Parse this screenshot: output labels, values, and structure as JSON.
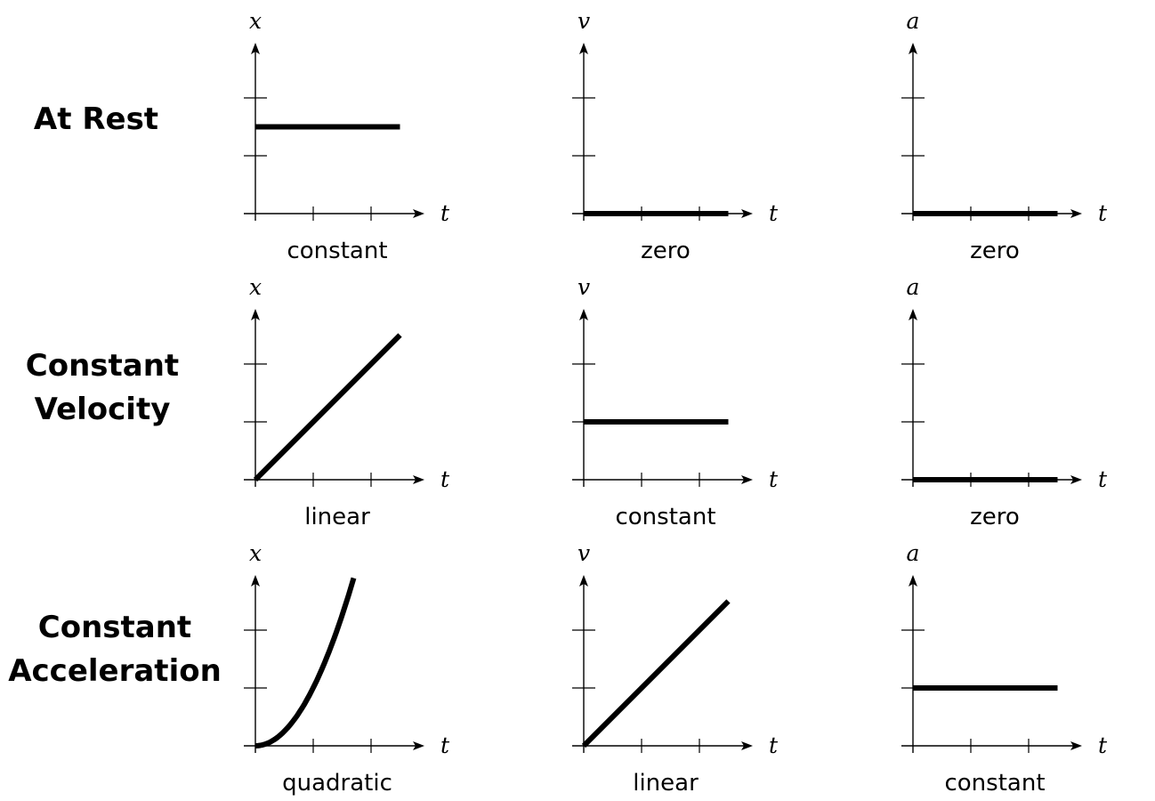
{
  "rows": [
    {
      "label_lines": [
        "At Rest"
      ],
      "graphs": [
        {
          "y_var": "x",
          "x_var": "t",
          "shape": "constant",
          "caption": "constant",
          "y_value": 1.5
        },
        {
          "y_var": "v",
          "x_var": "t",
          "shape": "zero",
          "caption": "zero",
          "y_value": 0
        },
        {
          "y_var": "a",
          "x_var": "t",
          "shape": "zero",
          "caption": "zero",
          "y_value": 0
        }
      ]
    },
    {
      "label_lines": [
        "Constant",
        "Velocity"
      ],
      "graphs": [
        {
          "y_var": "x",
          "x_var": "t",
          "shape": "linear",
          "caption": "linear",
          "end_value": 2.5
        },
        {
          "y_var": "v",
          "x_var": "t",
          "shape": "constant",
          "caption": "constant",
          "y_value": 1
        },
        {
          "y_var": "a",
          "x_var": "t",
          "shape": "zero",
          "caption": "zero",
          "y_value": 0
        }
      ]
    },
    {
      "label_lines": [
        "Constant",
        "Acceleration"
      ],
      "graphs": [
        {
          "y_var": "x",
          "x_var": "t",
          "shape": "quadratic",
          "caption": "quadratic",
          "end_value": 2.9
        },
        {
          "y_var": "v",
          "x_var": "t",
          "shape": "linear",
          "caption": "linear",
          "end_value": 2.5
        },
        {
          "y_var": "a",
          "x_var": "t",
          "shape": "constant",
          "caption": "constant",
          "y_value": 1
        }
      ]
    }
  ],
  "style": {
    "ink_color": "#000000",
    "background": "#ffffff"
  }
}
